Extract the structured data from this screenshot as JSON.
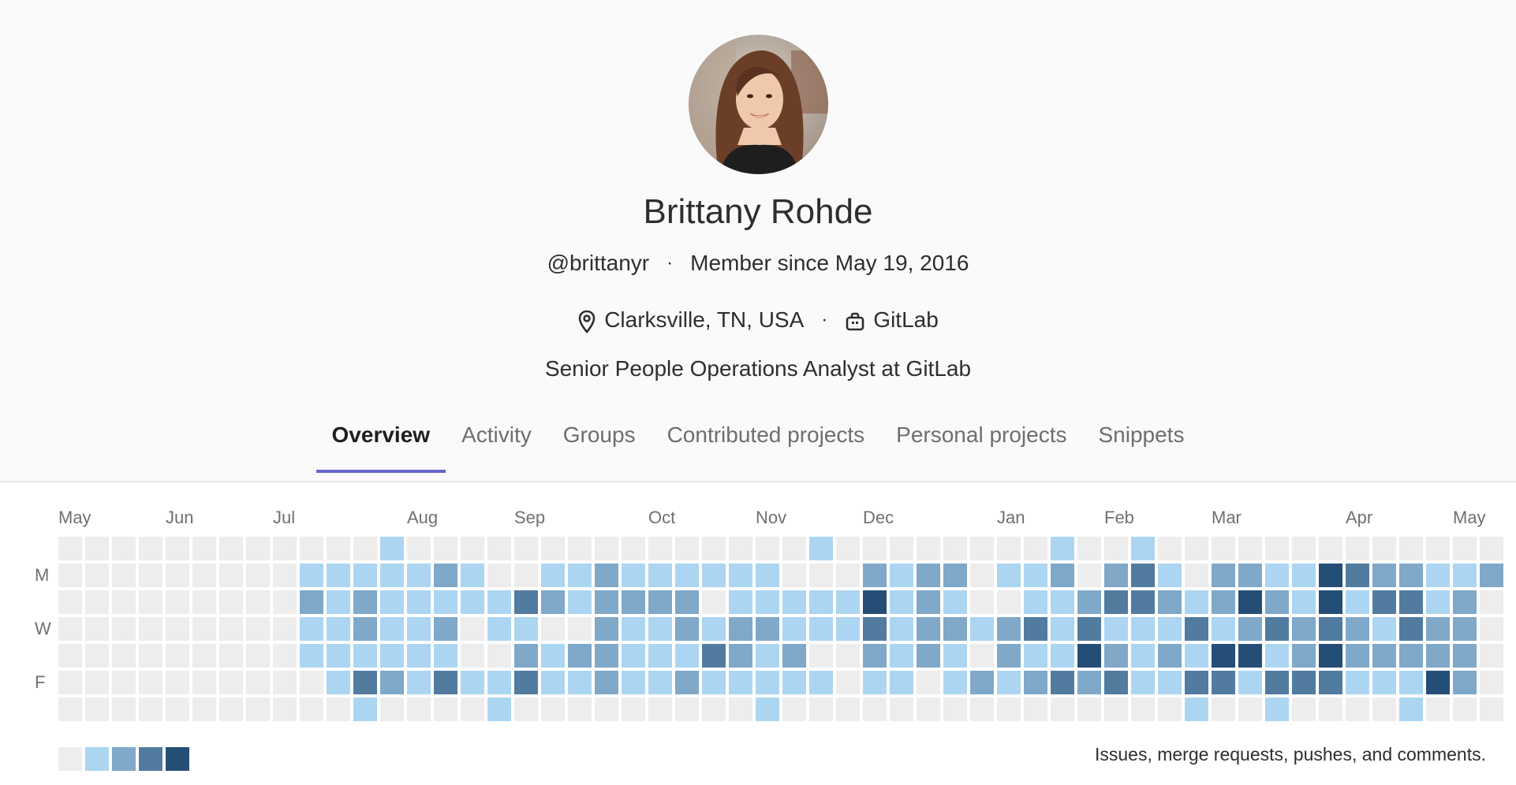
{
  "profile": {
    "name": "Brittany Rohde",
    "username": "@brittanyr",
    "member_since": "Member since May 19, 2016",
    "location": "Clarksville, TN, USA",
    "organization": "GitLab",
    "bio": "Senior People Operations Analyst at GitLab",
    "icons": {
      "location": "map-pin-icon",
      "organization": "briefcase-icon",
      "avatar": "user-avatar-photo"
    }
  },
  "tabs": [
    {
      "label": "Overview",
      "active": true
    },
    {
      "label": "Activity",
      "active": false
    },
    {
      "label": "Groups",
      "active": false
    },
    {
      "label": "Contributed projects",
      "active": false
    },
    {
      "label": "Personal projects",
      "active": false
    },
    {
      "label": "Snippets",
      "active": false
    }
  ],
  "calendar": {
    "months": [
      "May",
      "Jun",
      "Jul",
      "Aug",
      "Sep",
      "Oct",
      "Nov",
      "Dec",
      "Jan",
      "Feb",
      "Mar",
      "Apr",
      "May"
    ],
    "month_weeks": [
      0,
      4,
      8,
      13,
      17,
      22,
      26,
      30,
      35,
      39,
      43,
      48,
      52
    ],
    "day_labels": [
      "M",
      "W",
      "F"
    ],
    "day_label_rows": [
      1,
      3,
      5
    ],
    "legend_text": "Issues, merge requests, pushes, and comments.",
    "colors": [
      "#ededed",
      "#acd5f2",
      "#7fa8c9",
      "#527ba0",
      "#254e77"
    ],
    "legend_levels": [
      0,
      1,
      2,
      3,
      4
    ],
    "weeks": [
      [
        0,
        0,
        0,
        0,
        0,
        0,
        0
      ],
      [
        0,
        0,
        0,
        0,
        0,
        0,
        0
      ],
      [
        0,
        0,
        0,
        0,
        0,
        0,
        0
      ],
      [
        0,
        0,
        0,
        0,
        0,
        0,
        0
      ],
      [
        0,
        0,
        0,
        0,
        0,
        0,
        0
      ],
      [
        0,
        0,
        0,
        0,
        0,
        0,
        0
      ],
      [
        0,
        0,
        0,
        0,
        0,
        0,
        0
      ],
      [
        0,
        0,
        0,
        0,
        0,
        0,
        0
      ],
      [
        0,
        0,
        0,
        0,
        0,
        0,
        0
      ],
      [
        0,
        1,
        2,
        1,
        1,
        0,
        0
      ],
      [
        0,
        1,
        1,
        1,
        1,
        1,
        0
      ],
      [
        0,
        1,
        2,
        2,
        1,
        3,
        1
      ],
      [
        1,
        1,
        1,
        1,
        1,
        2,
        0
      ],
      [
        0,
        1,
        1,
        1,
        1,
        1,
        0
      ],
      [
        0,
        2,
        1,
        2,
        1,
        3,
        0
      ],
      [
        0,
        1,
        1,
        0,
        0,
        1,
        0
      ],
      [
        0,
        0,
        1,
        1,
        0,
        1,
        1
      ],
      [
        0,
        0,
        3,
        1,
        2,
        3,
        0
      ],
      [
        0,
        1,
        2,
        0,
        1,
        1,
        0
      ],
      [
        0,
        1,
        1,
        0,
        2,
        1,
        0
      ],
      [
        0,
        2,
        2,
        2,
        2,
        2,
        0
      ],
      [
        0,
        1,
        2,
        1,
        1,
        1,
        0
      ],
      [
        0,
        1,
        2,
        1,
        1,
        1,
        0
      ],
      [
        0,
        1,
        2,
        2,
        1,
        2,
        0
      ],
      [
        0,
        1,
        0,
        1,
        3,
        1,
        0
      ],
      [
        0,
        1,
        1,
        2,
        2,
        1,
        0
      ],
      [
        0,
        1,
        1,
        2,
        1,
        1,
        1
      ],
      [
        0,
        0,
        1,
        1,
        2,
        1,
        0
      ],
      [
        1,
        0,
        1,
        1,
        0,
        1,
        0
      ],
      [
        0,
        0,
        1,
        1,
        0,
        0,
        0
      ],
      [
        0,
        2,
        4,
        3,
        2,
        1,
        0
      ],
      [
        0,
        1,
        1,
        1,
        1,
        1,
        0
      ],
      [
        0,
        2,
        2,
        2,
        2,
        0,
        0
      ],
      [
        0,
        2,
        1,
        2,
        1,
        1,
        0
      ],
      [
        0,
        0,
        0,
        1,
        0,
        2,
        0
      ],
      [
        0,
        1,
        0,
        2,
        2,
        1,
        0
      ],
      [
        0,
        1,
        1,
        3,
        1,
        2,
        0
      ],
      [
        1,
        2,
        1,
        1,
        1,
        3,
        0
      ],
      [
        0,
        0,
        2,
        3,
        4,
        2,
        0
      ],
      [
        0,
        2,
        3,
        1,
        2,
        3,
        0
      ],
      [
        1,
        3,
        3,
        1,
        1,
        1,
        0
      ],
      [
        0,
        1,
        2,
        1,
        2,
        1,
        0
      ],
      [
        0,
        0,
        1,
        3,
        1,
        3,
        1
      ],
      [
        0,
        2,
        2,
        1,
        4,
        3,
        0
      ],
      [
        0,
        2,
        4,
        2,
        4,
        1,
        0
      ],
      [
        0,
        1,
        2,
        3,
        1,
        3,
        1
      ],
      [
        0,
        1,
        1,
        2,
        2,
        3,
        0
      ],
      [
        0,
        4,
        4,
        3,
        4,
        3,
        0
      ],
      [
        0,
        3,
        1,
        2,
        2,
        1,
        0
      ],
      [
        0,
        2,
        3,
        1,
        2,
        1,
        0
      ],
      [
        0,
        2,
        3,
        3,
        2,
        1,
        1
      ],
      [
        0,
        1,
        1,
        2,
        2,
        4,
        0
      ],
      [
        0,
        1,
        2,
        2,
        2,
        2,
        0
      ],
      [
        0,
        2,
        0,
        0,
        0,
        0,
        0
      ]
    ]
  }
}
